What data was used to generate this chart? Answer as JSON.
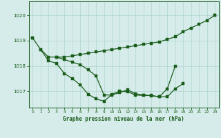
{
  "title": "Graphe pression niveau de la mer (hPa)",
  "bg_color": "#d5ecea",
  "grid_color": "#b0d5d0",
  "line_color": "#1a5c1a",
  "line_width": 0.9,
  "marker_size": 2.2,
  "ylim": [
    1016.35,
    1020.55
  ],
  "xlim": [
    -0.5,
    23.5
  ],
  "yticks": [
    1017,
    1018,
    1019,
    1020
  ],
  "xticks": [
    0,
    1,
    2,
    3,
    4,
    5,
    6,
    7,
    8,
    9,
    10,
    11,
    12,
    13,
    14,
    15,
    16,
    17,
    18,
    19,
    20,
    21,
    22,
    23
  ],
  "lines": [
    [
      1019.1,
      null,
      null,
      null,
      null,
      null,
      null,
      null,
      null,
      null,
      null,
      null,
      null,
      null,
      null,
      null,
      null,
      null,
      null,
      null,
      null,
      null,
      null,
      1020.0
    ],
    [
      1019.1,
      1018.65,
      1018.35,
      1018.35,
      1018.35,
      1018.4,
      1018.45,
      1018.5,
      1018.55,
      1018.6,
      1018.65,
      1018.7,
      1018.75,
      1018.8,
      1018.85,
      1018.9,
      1018.95,
      1019.05,
      1019.15,
      1019.35,
      1019.5,
      1019.65,
      1019.8,
      1020.0
    ],
    [
      null,
      null,
      null,
      1018.35,
      1018.25,
      1018.15,
      1018.05,
      1017.85,
      1017.6,
      1016.85,
      1016.85,
      1016.95,
      1017.05,
      1016.9,
      1016.85,
      1016.82,
      1016.78,
      1016.78,
      1017.1,
      1017.3,
      null,
      null,
      null,
      null
    ],
    [
      null,
      1018.65,
      1018.2,
      1018.1,
      1017.7,
      1017.5,
      1017.25,
      1016.88,
      1016.7,
      1016.6,
      1016.88,
      1017.0,
      1016.98,
      1016.85,
      1016.83,
      1016.83,
      1016.78,
      1017.1,
      1018.0,
      null,
      null,
      null,
      null,
      null
    ]
  ]
}
